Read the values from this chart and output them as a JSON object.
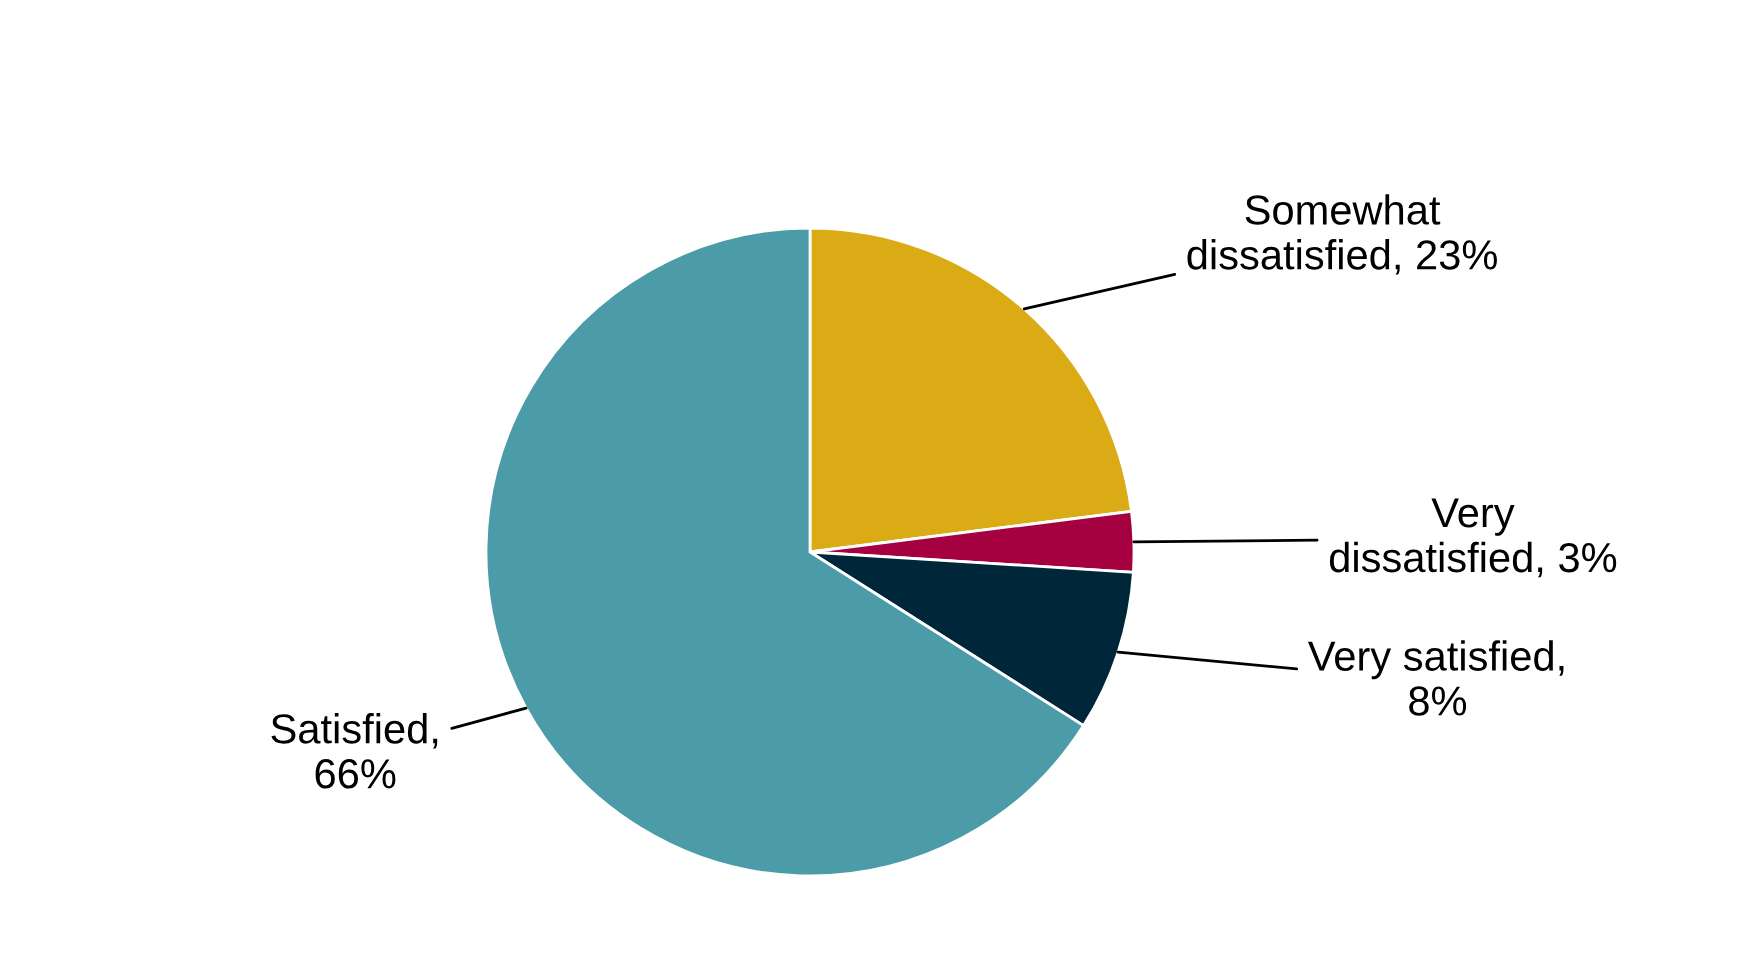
{
  "chart_data": {
    "type": "pie",
    "categories": [
      "Somewhat\ndissatisfied, 23%",
      "Very\ndissatisfied, 3%",
      "Very satisfied,\n8%",
      "Satisfied,\n66%"
    ],
    "values": [
      23,
      3,
      8,
      66
    ],
    "colors": [
      "#dbab15",
      "#a50040",
      "#00263a",
      "#4b9ca8"
    ]
  }
}
